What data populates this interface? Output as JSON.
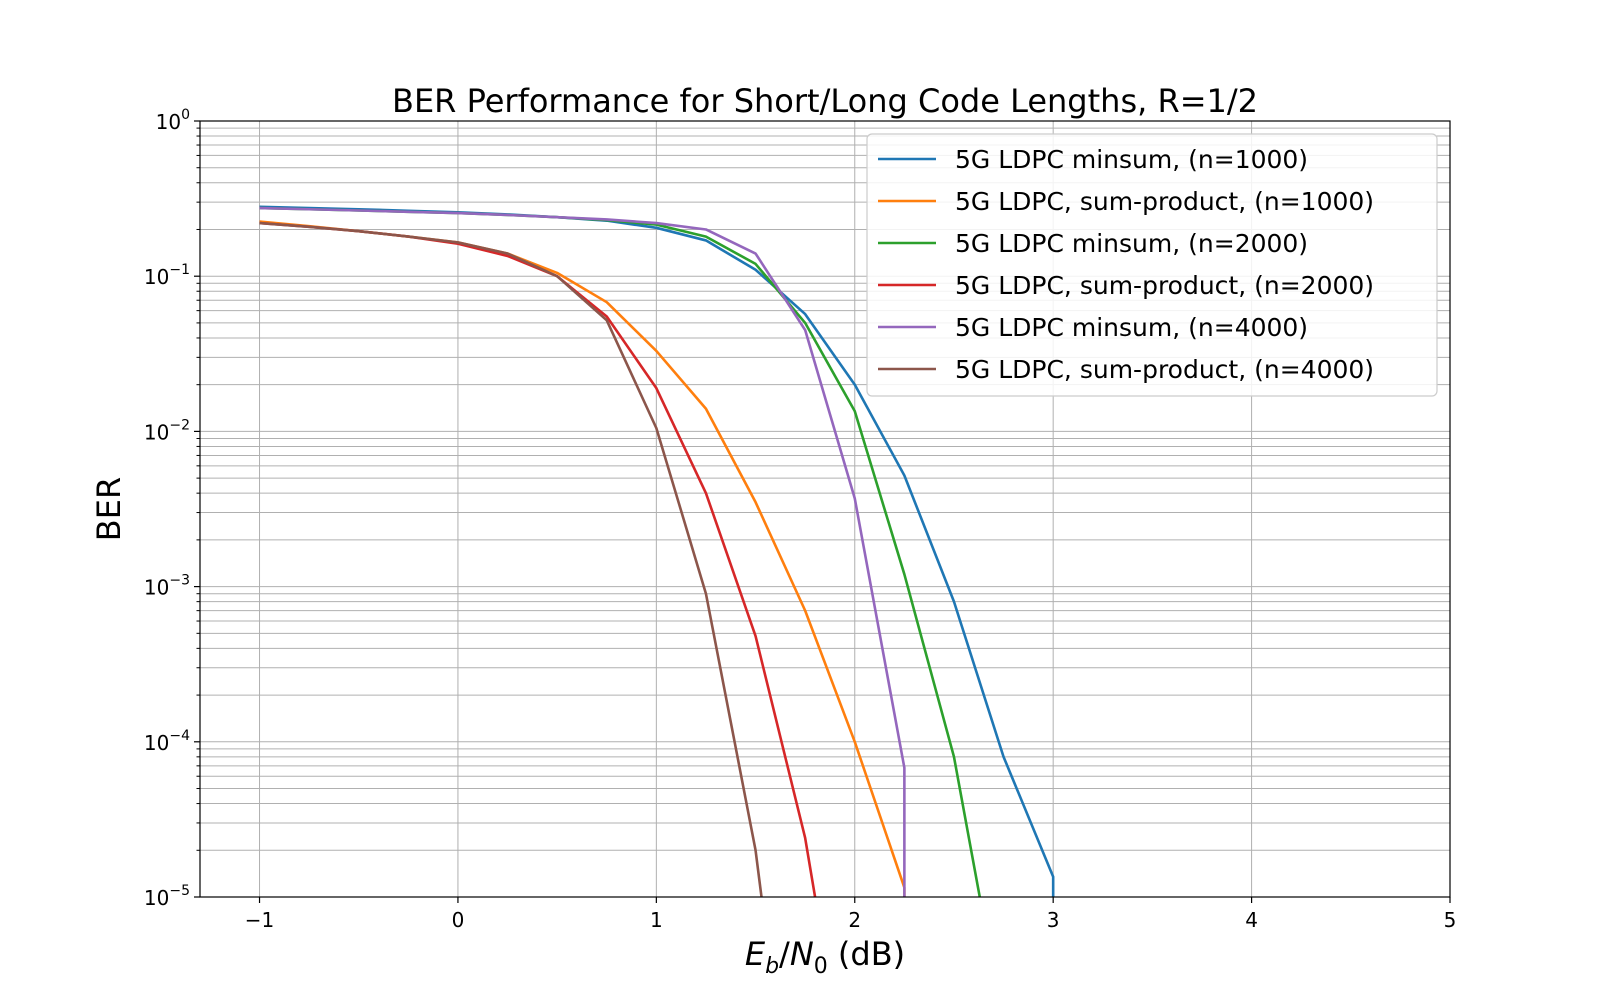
{
  "chart_data": {
    "type": "line",
    "title": "BER Performance for Short/Long Code Lengths, R=1/2",
    "xlabel": {
      "var": "E",
      "sub": "b",
      "slash": "/",
      "var2": "N",
      "sub2": "0",
      "unit": " (dB)"
    },
    "ylabel": "BER",
    "xlim": [
      -1.3,
      5.0
    ],
    "ylim": [
      1e-05,
      1
    ],
    "yscale": "log",
    "grid": "major and minor",
    "legend_position": "upper-right",
    "xticks": [
      -1,
      0,
      1,
      2,
      3,
      4,
      5
    ],
    "xtick_labels": [
      "−1",
      "0",
      "1",
      "2",
      "3",
      "4",
      "5"
    ],
    "yticks": [
      0,
      -1,
      -2,
      -3,
      -4,
      -5
    ],
    "ytick_base": "10",
    "ytick_exponents": [
      "0",
      "−1",
      "−2",
      "−3",
      "−4",
      "−5"
    ],
    "series": [
      {
        "name": "5G LDPC minsum, (n=1000)",
        "color": "#1f77b4",
        "x": [
          -1,
          -0.75,
          -0.5,
          -0.25,
          0,
          0.25,
          0.5,
          0.75,
          1,
          1.25,
          1.5,
          1.75,
          2,
          2.25,
          2.5,
          2.75,
          3,
          3
        ],
        "y": [
          0.28,
          0.275,
          0.27,
          0.264,
          0.258,
          0.25,
          0.24,
          0.228,
          0.205,
          0.17,
          0.11,
          0.057,
          0.02,
          0.0052,
          0.0008,
          8e-05,
          1.35e-05,
          1e-05
        ]
      },
      {
        "name": "5G LDPC, sum-product, (n=1000)",
        "color": "#ff7f0e",
        "x": [
          -1,
          -0.75,
          -0.5,
          -0.25,
          0,
          0.25,
          0.5,
          0.75,
          1,
          1.25,
          1.5,
          1.75,
          2,
          2.25,
          2.25
        ],
        "y": [
          0.225,
          0.21,
          0.195,
          0.18,
          0.165,
          0.14,
          0.105,
          0.068,
          0.033,
          0.014,
          0.0035,
          0.0007,
          0.0001,
          1.15e-05,
          1e-05
        ]
      },
      {
        "name": "5G LDPC minsum, (n=2000)",
        "color": "#2ca02c",
        "x": [
          -1,
          -0.75,
          -0.5,
          -0.25,
          0,
          0.25,
          0.5,
          0.75,
          1,
          1.25,
          1.5,
          1.75,
          2,
          2.25,
          2.5,
          2.63
        ],
        "y": [
          0.275,
          0.27,
          0.265,
          0.26,
          0.255,
          0.248,
          0.24,
          0.23,
          0.215,
          0.18,
          0.12,
          0.05,
          0.0135,
          0.0012,
          8e-05,
          1e-05
        ]
      },
      {
        "name": "5G LDPC, sum-product, (n=2000)",
        "color": "#d62728",
        "x": [
          -1,
          -0.75,
          -0.5,
          -0.25,
          0,
          0.25,
          0.5,
          0.75,
          1,
          1.25,
          1.5,
          1.75,
          1.8
        ],
        "y": [
          0.22,
          0.208,
          0.195,
          0.18,
          0.162,
          0.135,
          0.1,
          0.055,
          0.019,
          0.004,
          0.00048,
          2.4e-05,
          1e-05
        ]
      },
      {
        "name": "5G LDPC minsum, (n=4000)",
        "color": "#9467bd",
        "x": [
          -1,
          -0.75,
          -0.5,
          -0.25,
          0,
          0.25,
          0.5,
          0.75,
          1,
          1.25,
          1.5,
          1.75,
          2,
          2.25,
          2.25
        ],
        "y": [
          0.275,
          0.27,
          0.265,
          0.26,
          0.255,
          0.248,
          0.24,
          0.232,
          0.22,
          0.2,
          0.14,
          0.045,
          0.0037,
          6.8e-05,
          1e-05
        ]
      },
      {
        "name": "5G LDPC, sum-product, (n=4000)",
        "color": "#8c564b",
        "x": [
          -1,
          -0.75,
          -0.5,
          -0.25,
          0,
          0.25,
          0.5,
          0.75,
          1,
          1.25,
          1.5,
          1.53
        ],
        "y": [
          0.22,
          0.208,
          0.195,
          0.18,
          0.165,
          0.14,
          0.1,
          0.052,
          0.0105,
          0.0009,
          2e-05,
          1e-05
        ]
      }
    ]
  }
}
